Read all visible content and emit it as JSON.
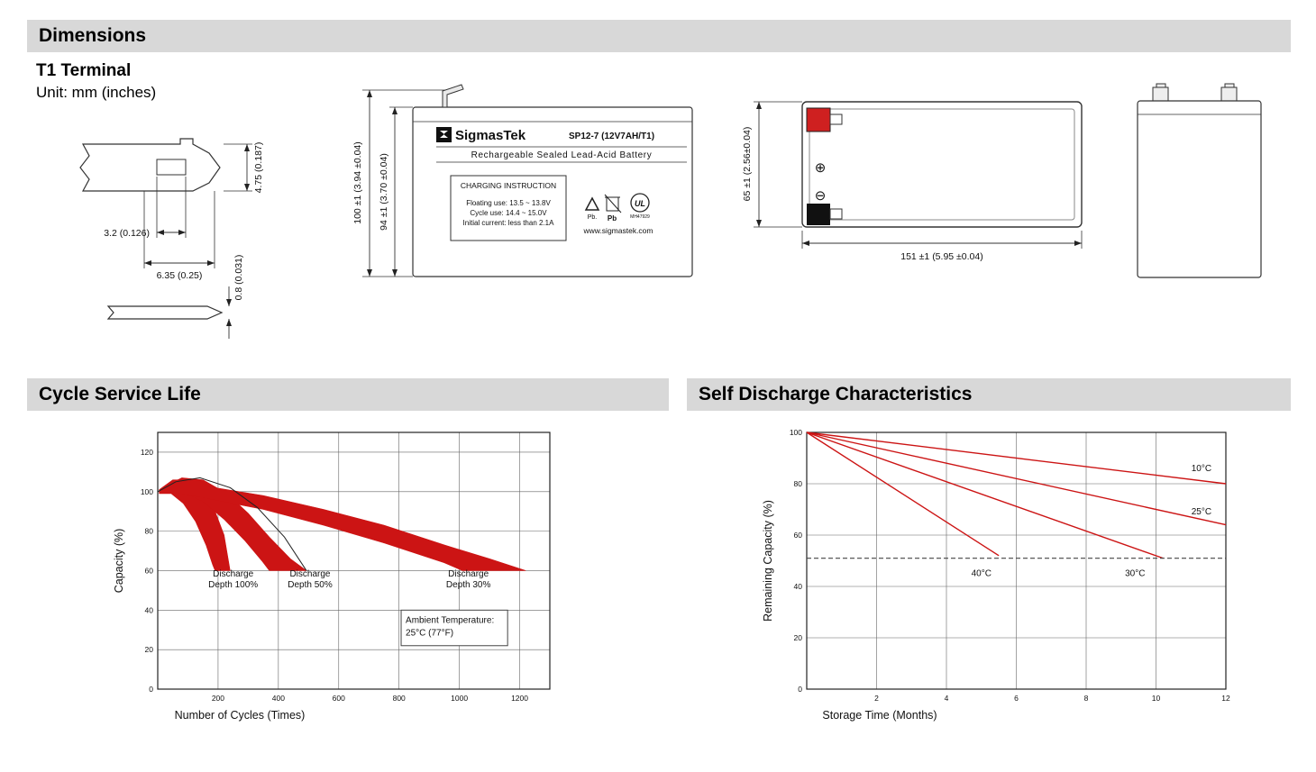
{
  "page": {
    "header": "Dimensions",
    "subheader": "T1 Terminal",
    "unit_note": "Unit: mm (inches)"
  },
  "terminal_drawing": {
    "dim_height": "4.75 (0.187)",
    "dim_offset": "3.2 (0.126)",
    "dim_width": "6.35 (0.25)",
    "dim_thickness": "0.8 (0.031)"
  },
  "front_view": {
    "brand": "SigmasTek",
    "model": "SP12-7 (12V7AH/T1)",
    "type_line": "Rechargeable Sealed Lead-Acid Battery",
    "charging": {
      "title": "CHARGING INSTRUCTION",
      "line1": "Floating use: 13.5 ~ 13.8V",
      "line2": "Cycle use: 14.4 ~ 15.0V",
      "line3": "Initial current: less than 2.1A"
    },
    "pb_left": "Pb.",
    "pb_right": "Pb",
    "ul_mark": "UL",
    "ul_code": "MH47929",
    "website": "www.sigmastek.com",
    "dim_height_total": "100 ±1 (3.94 ±0.04)",
    "dim_height_body": "94 ±1 (3.70 ±0.04)"
  },
  "top_view": {
    "dim_depth": "65 ±1 (2.56±0.04)",
    "dim_length": "151 ±1 (5.95 ±0.04)",
    "plus_symbol": "⊕",
    "minus_symbol": "⊖"
  },
  "sections": {
    "cycle_service_life": "Cycle Service Life",
    "self_discharge": "Self Discharge Characteristics"
  },
  "chart_data": [
    {
      "type": "area",
      "title": "Cycle Service Life",
      "xlabel": "Number of Cycles (Times)",
      "ylabel": "Capacity (%)",
      "xlim": [
        0,
        1300
      ],
      "ylim": [
        0,
        130
      ],
      "xticks": [
        200,
        400,
        600,
        800,
        1000,
        1200
      ],
      "yticks": [
        0,
        20,
        40,
        60,
        80,
        100,
        120
      ],
      "grid": true,
      "legend_position": "none",
      "series": [
        {
          "name": "Discharge Depth 100%",
          "color": "#cc1414",
          "upper": [
            [
              5,
              101
            ],
            [
              50,
              106
            ],
            [
              100,
              106
            ],
            [
              150,
              100
            ],
            [
              190,
              90
            ],
            [
              220,
              78
            ],
            [
              240,
              60
            ]
          ],
          "lower": [
            [
              5,
              99
            ],
            [
              45,
              99
            ],
            [
              85,
              94
            ],
            [
              125,
              85
            ],
            [
              160,
              73
            ],
            [
              182,
              63
            ],
            [
              190,
              60
            ]
          ]
        },
        {
          "name": "Discharge Depth 50%",
          "color": "#cc1414",
          "upper": [
            [
              15,
              102
            ],
            [
              80,
              107
            ],
            [
              150,
              106
            ],
            [
              230,
              99
            ],
            [
              300,
              89
            ],
            [
              370,
              77
            ],
            [
              440,
              66
            ],
            [
              493,
              60
            ]
          ],
          "lower": [
            [
              15,
              100
            ],
            [
              80,
              100
            ],
            [
              150,
              95
            ],
            [
              220,
              86
            ],
            [
              290,
              75
            ],
            [
              345,
              65
            ],
            [
              370,
              60
            ]
          ]
        },
        {
          "name": "Discharge Depth 30%",
          "color": "#cc1414",
          "upper": [
            [
              40,
              103
            ],
            [
              150,
              103
            ],
            [
              350,
              98
            ],
            [
              550,
              91
            ],
            [
              750,
              83
            ],
            [
              950,
              73
            ],
            [
              1100,
              66
            ],
            [
              1220,
              60
            ]
          ],
          "lower": [
            [
              40,
              100
            ],
            [
              150,
              97
            ],
            [
              350,
              91
            ],
            [
              550,
              83
            ],
            [
              750,
              74
            ],
            [
              950,
              64
            ],
            [
              1010,
              60
            ]
          ]
        }
      ],
      "envelope": [
        [
          0,
          100
        ],
        [
          60,
          105
        ],
        [
          140,
          107
        ],
        [
          240,
          102
        ],
        [
          330,
          92
        ],
        [
          420,
          77
        ],
        [
          493,
          60
        ]
      ],
      "labels": [
        {
          "lines": [
            "Discharge",
            "Depth 100%"
          ],
          "x": 250,
          "y": 57
        },
        {
          "lines": [
            "Discharge",
            "Depth 50%"
          ],
          "x": 505,
          "y": 57
        },
        {
          "lines": [
            "Discharge",
            "Depth 30%"
          ],
          "x": 1030,
          "y": 57
        }
      ],
      "note_box": {
        "lines": [
          "Ambient Temperature:",
          "25°C (77°F)"
        ],
        "x": 807,
        "x2": 1160,
        "y_top": 40,
        "y_bottom": 22
      }
    },
    {
      "type": "line",
      "title": "Self Discharge Characteristics",
      "xlabel": "Storage Time (Months)",
      "ylabel": "Remaining Capacity (%)",
      "xlim": [
        0,
        12
      ],
      "ylim": [
        0,
        100
      ],
      "xticks": [
        2,
        4,
        6,
        8,
        10,
        12
      ],
      "yticks": [
        0,
        20,
        40,
        60,
        80,
        100
      ],
      "grid": true,
      "legend_position": "inline-labels",
      "series": [
        {
          "name": "10°C",
          "color": "#cc1414",
          "points": [
            [
              0,
              100
            ],
            [
              12,
              80
            ]
          ]
        },
        {
          "name": "25°C",
          "color": "#cc1414",
          "points": [
            [
              0,
              100
            ],
            [
              12,
              64
            ]
          ]
        },
        {
          "name": "30°C",
          "color": "#cc1414",
          "points": [
            [
              0,
              100
            ],
            [
              10.2,
              51
            ]
          ]
        },
        {
          "name": "40°C",
          "color": "#cc1414",
          "points": [
            [
              0,
              100
            ],
            [
              5.5,
              52
            ]
          ]
        }
      ],
      "dashed_line": {
        "y": 51,
        "x1": 0,
        "x2": 12
      },
      "labels": [
        {
          "lines": [
            "10°C"
          ],
          "x": 11.3,
          "y": 85
        },
        {
          "lines": [
            "25°C"
          ],
          "x": 11.3,
          "y": 68
        },
        {
          "lines": [
            "40°C"
          ],
          "x": 5.0,
          "y": 44
        },
        {
          "lines": [
            "30°C"
          ],
          "x": 9.4,
          "y": 44
        }
      ]
    }
  ]
}
